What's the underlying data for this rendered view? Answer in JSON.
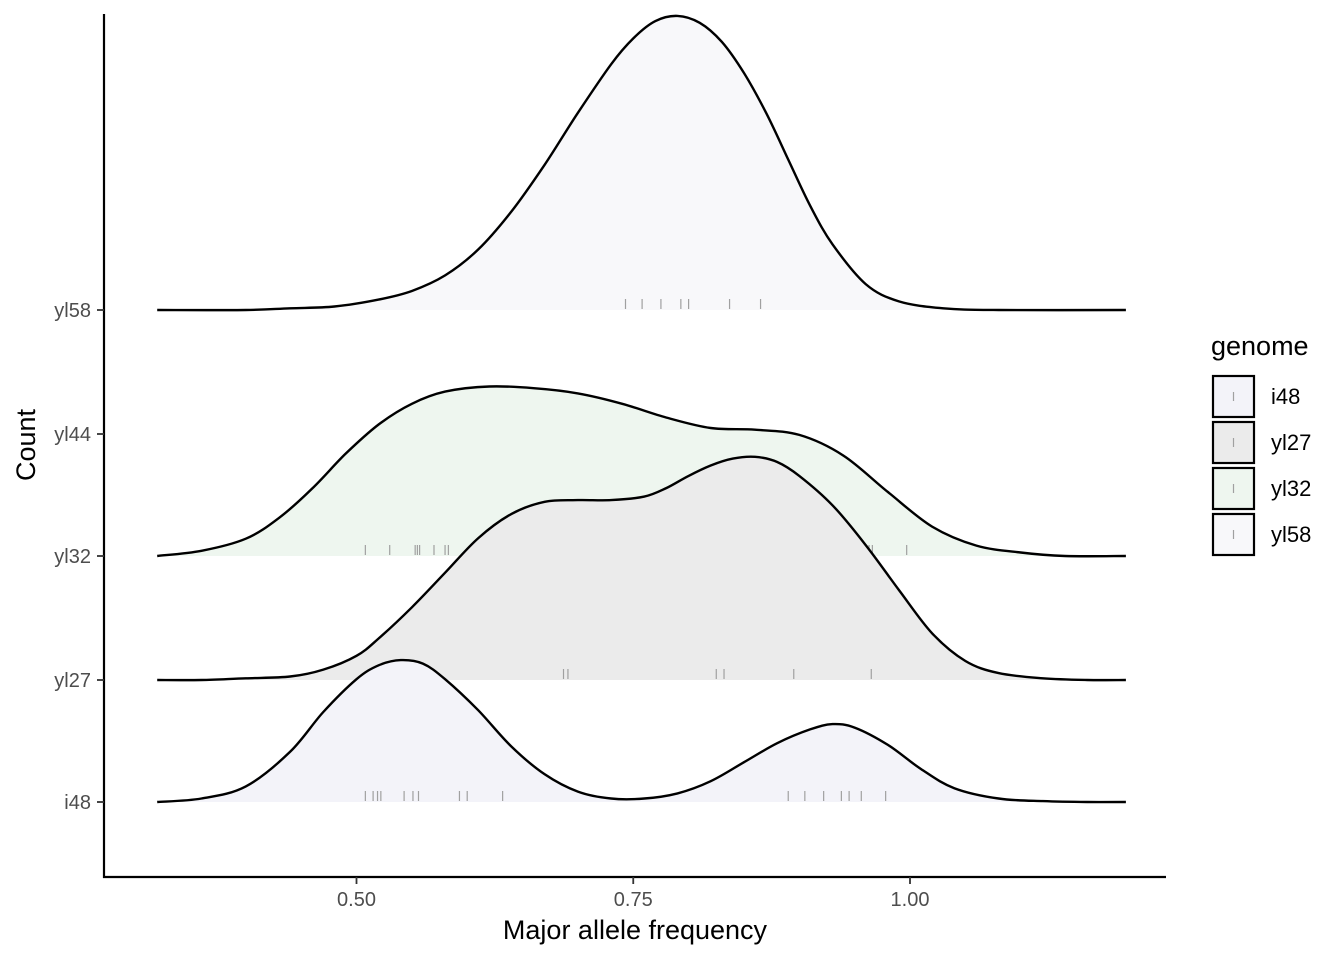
{
  "chart_data": {
    "type": "ridgeline",
    "xlabel": "Major allele frequency",
    "ylabel": "Count",
    "xlim": [
      0.28,
      1.2
    ],
    "x_ticks": [
      0.5,
      0.75,
      1.0
    ],
    "x_tick_labels": [
      "0.50",
      "0.75",
      "1.00"
    ],
    "y_categories": [
      "i48",
      "yl27",
      "yl32",
      "yl44",
      "yl58"
    ],
    "grid": false,
    "legend": {
      "title": "genome",
      "position": "right",
      "entries": [
        "i48",
        "yl27",
        "yl32",
        "yl58"
      ]
    },
    "series": [
      {
        "name": "i48",
        "baseline": "i48",
        "fill": "#f3f3f9",
        "density_x": [
          0.32,
          0.36,
          0.4,
          0.44,
          0.47,
          0.5,
          0.52,
          0.54,
          0.56,
          0.58,
          0.61,
          0.64,
          0.67,
          0.7,
          0.73,
          0.76,
          0.79,
          0.82,
          0.85,
          0.88,
          0.91,
          0.93,
          0.95,
          0.98,
          1.01,
          1.04,
          1.08,
          1.12,
          1.16,
          1.195
        ],
        "density_height": [
          0.0,
          0.02,
          0.09,
          0.29,
          0.52,
          0.71,
          0.79,
          0.82,
          0.8,
          0.71,
          0.53,
          0.32,
          0.16,
          0.06,
          0.02,
          0.02,
          0.05,
          0.12,
          0.23,
          0.34,
          0.42,
          0.45,
          0.43,
          0.33,
          0.19,
          0.08,
          0.02,
          0.005,
          0.0,
          0.0
        ],
        "rug": [
          0.508,
          0.515,
          0.519,
          0.522,
          0.543,
          0.551,
          0.556,
          0.593,
          0.6,
          0.632,
          0.89,
          0.905,
          0.922,
          0.938,
          0.945,
          0.956,
          0.978
        ]
      },
      {
        "name": "yl27",
        "baseline": "yl27",
        "fill": "#ebebeb",
        "density_x": [
          0.32,
          0.36,
          0.4,
          0.44,
          0.47,
          0.5,
          0.52,
          0.55,
          0.58,
          0.61,
          0.64,
          0.67,
          0.7,
          0.73,
          0.76,
          0.78,
          0.8,
          0.82,
          0.84,
          0.86,
          0.88,
          0.9,
          0.93,
          0.96,
          0.99,
          1.02,
          1.05,
          1.08,
          1.12,
          1.16,
          1.195
        ],
        "density_height": [
          0.0,
          0.0,
          0.01,
          0.02,
          0.06,
          0.14,
          0.24,
          0.42,
          0.62,
          0.82,
          0.96,
          1.03,
          1.04,
          1.04,
          1.06,
          1.11,
          1.18,
          1.24,
          1.28,
          1.29,
          1.26,
          1.18,
          1.01,
          0.78,
          0.52,
          0.27,
          0.11,
          0.04,
          0.01,
          0.0,
          0.0
        ],
        "rug": [
          0.687,
          0.691,
          0.825,
          0.832,
          0.895,
          0.965
        ]
      },
      {
        "name": "yl32",
        "baseline": "yl32",
        "fill": "#eef6ef",
        "density_x": [
          0.32,
          0.36,
          0.4,
          0.43,
          0.46,
          0.49,
          0.52,
          0.55,
          0.58,
          0.62,
          0.66,
          0.7,
          0.74,
          0.78,
          0.82,
          0.86,
          0.9,
          0.94,
          0.98,
          1.02,
          1.06,
          1.1,
          1.14,
          1.195
        ],
        "density_height": [
          0.0,
          0.03,
          0.1,
          0.22,
          0.39,
          0.59,
          0.76,
          0.88,
          0.95,
          0.98,
          0.97,
          0.94,
          0.88,
          0.8,
          0.74,
          0.73,
          0.7,
          0.58,
          0.37,
          0.17,
          0.06,
          0.02,
          0.0,
          0.0
        ],
        "rug": [
          0.508,
          0.53,
          0.553,
          0.555,
          0.557,
          0.57,
          0.58,
          0.583,
          0.615,
          0.633,
          0.638,
          0.643,
          0.658,
          0.69,
          0.705,
          0.712,
          0.716,
          0.735,
          0.748,
          0.762,
          0.778,
          0.79,
          0.8,
          0.843,
          0.873,
          0.878,
          0.893,
          0.899,
          0.933,
          0.958,
          0.963,
          0.966,
          0.997
        ]
      },
      {
        "name": "yl58",
        "baseline": "yl58",
        "fill": "#f8f8fa",
        "density_x": [
          0.32,
          0.4,
          0.44,
          0.48,
          0.52,
          0.55,
          0.58,
          0.61,
          0.64,
          0.67,
          0.7,
          0.73,
          0.75,
          0.77,
          0.79,
          0.81,
          0.83,
          0.85,
          0.87,
          0.89,
          0.91,
          0.93,
          0.96,
          0.99,
          1.03,
          1.08,
          1.195
        ],
        "density_height": [
          0.0,
          0.0,
          0.01,
          0.02,
          0.06,
          0.11,
          0.2,
          0.35,
          0.57,
          0.84,
          1.14,
          1.42,
          1.57,
          1.67,
          1.7,
          1.66,
          1.55,
          1.37,
          1.14,
          0.87,
          0.6,
          0.38,
          0.15,
          0.05,
          0.01,
          0.0,
          0.0
        ],
        "rug": [
          0.743,
          0.758,
          0.775,
          0.793,
          0.8,
          0.837,
          0.865
        ]
      }
    ]
  }
}
